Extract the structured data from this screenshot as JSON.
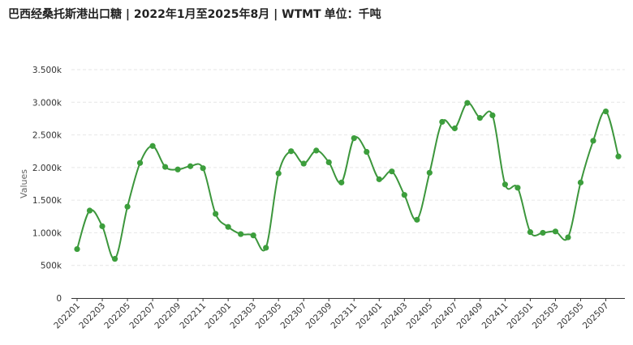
{
  "title": {
    "main": "巴西经桑托斯港出口糖 | 2022年1月至2025年8月 | WTMT",
    "unit": "单位：千吨"
  },
  "colors": {
    "line": "#3c963c",
    "marker": "#3c9e3c",
    "grid": "#e6e6e6",
    "axis": "#333333"
  },
  "chart_data": {
    "type": "line",
    "smooth": true,
    "markers": true,
    "grid": "horizontal-dashed",
    "legend": "none",
    "ylabel": "Values",
    "ylim": [
      0,
      3500
    ],
    "y_ticks": [
      0,
      500,
      1000,
      1500,
      2000,
      2500,
      3000,
      3500
    ],
    "y_tick_labels": [
      "0",
      "500k",
      "1.000k",
      "1.500k",
      "2.000k",
      "2.500k",
      "3.000k",
      "3.500k"
    ],
    "x": [
      "202201",
      "202202",
      "202203",
      "202204",
      "202205",
      "202206",
      "202207",
      "202208",
      "202209",
      "202210",
      "202211",
      "202212",
      "202301",
      "202302",
      "202303",
      "202304",
      "202305",
      "202306",
      "202307",
      "202308",
      "202309",
      "202310",
      "202311",
      "202312",
      "202401",
      "202402",
      "202403",
      "202404",
      "202405",
      "202406",
      "202407",
      "202408",
      "202409",
      "202410",
      "202411",
      "202412",
      "202501",
      "202502",
      "202503",
      "202504",
      "202505",
      "202506",
      "202507",
      "202508"
    ],
    "x_tick_labels": [
      "202201",
      "202203",
      "202205",
      "202207",
      "202209",
      "202211",
      "202301",
      "202303",
      "202305",
      "202307",
      "202309",
      "202311",
      "202401",
      "202403",
      "202405",
      "202407",
      "202409",
      "202411",
      "202501",
      "202503",
      "202505",
      "202507"
    ],
    "values": [
      750,
      1340,
      1100,
      600,
      1400,
      2070,
      2330,
      2010,
      1970,
      2020,
      1990,
      1290,
      1090,
      980,
      960,
      770,
      1910,
      2250,
      2060,
      2260,
      2080,
      1770,
      2450,
      2240,
      1820,
      1940,
      1580,
      1200,
      1920,
      2700,
      2600,
      2990,
      2760,
      2800,
      1740,
      1690,
      1010,
      1000,
      1020,
      930,
      1770,
      2410,
      2860,
      2170
    ]
  }
}
